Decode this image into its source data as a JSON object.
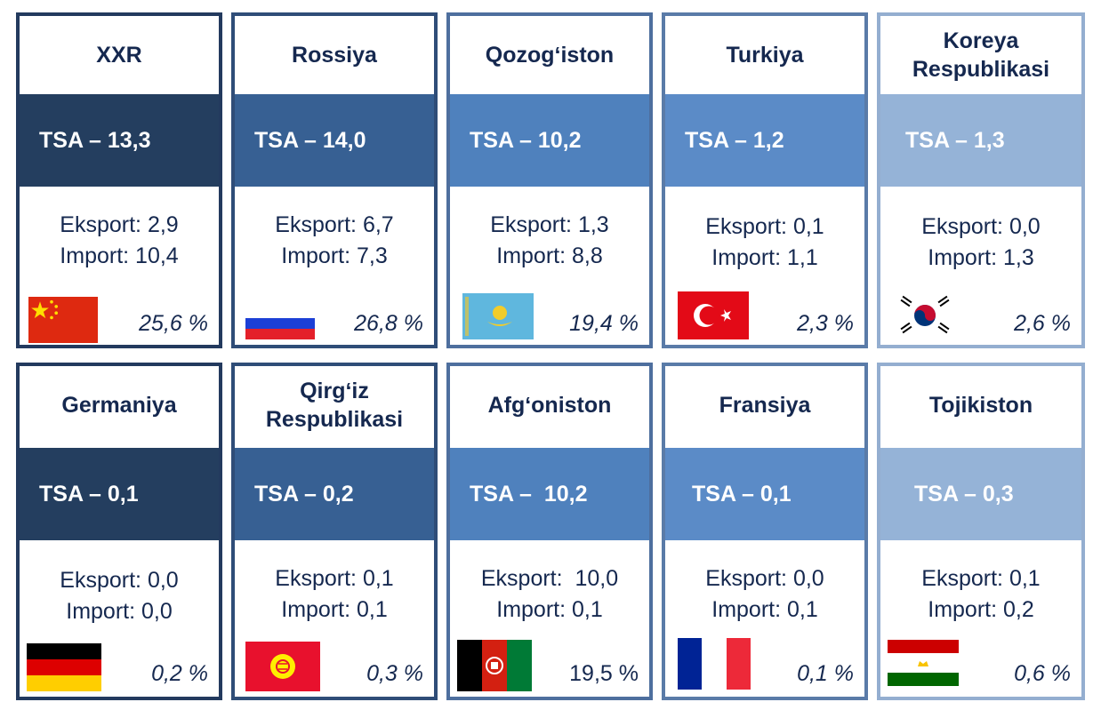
{
  "cards": [
    {
      "name": "XXR",
      "tsa": "TSA – 13,3",
      "eksport": "Eksport: 2,9",
      "import": "Import: 10,4",
      "share": "25,6 %",
      "flag": "china-flag-icon"
    },
    {
      "name": "Rossiya",
      "tsa": "TSA – 14,0",
      "eksport": "Eksport: 6,7",
      "import": "Import: 7,3",
      "share": "26,8 %",
      "flag": "russia-flag-icon"
    },
    {
      "name": "Qozogʻiston",
      "tsa": "TSA – 10,2",
      "eksport": "Eksport: 1,3",
      "import": "Import: 8,8",
      "share": "19,4 %",
      "flag": "kazakhstan-flag-icon"
    },
    {
      "name": "Turkiya",
      "tsa": "TSA – 1,2",
      "eksport": "Eksport: 0,1",
      "import": "Import: 1,1",
      "share": "2,3 %",
      "flag": "turkey-flag-icon"
    },
    {
      "name": "Koreya Respublikasi",
      "tsa": "TSA – 1,3",
      "eksport": "Eksport: 0,0",
      "import": "Import: 1,3",
      "share": "2,6 %",
      "flag": "south-korea-flag-icon"
    },
    {
      "name": "Germaniya",
      "tsa": "TSA – 0,1",
      "eksport": "Eksport: 0,0",
      "import": "Import: 0,0",
      "share": "0,2 %",
      "flag": "germany-flag-icon"
    },
    {
      "name": "Qirgʻiz Respublikasi",
      "tsa": "TSA – 0,2",
      "eksport": "Eksport: 0,1",
      "import": "Import: 0,1",
      "share": "0,3 %",
      "flag": "kyrgyzstan-flag-icon"
    },
    {
      "name": "Afgʻoniston",
      "tsa": "TSA –  10,2",
      "eksport": "Eksport:  10,0",
      "import": "Import: 0,1",
      "share": "19,5 %",
      "flag": "afghanistan-flag-icon"
    },
    {
      "name": "Fransiya",
      "tsa": "TSA – 0,1",
      "eksport": "Eksport: 0,0",
      "import": "Import: 0,1",
      "share": "0,1 %",
      "flag": "france-flag-icon"
    },
    {
      "name": "Tojikiston",
      "tsa": "TSA – 0,3",
      "eksport": "Eksport: 0,1",
      "import": "Import: 0,2",
      "share": "0,6 %",
      "flag": "tajikistan-flag-icon"
    }
  ]
}
